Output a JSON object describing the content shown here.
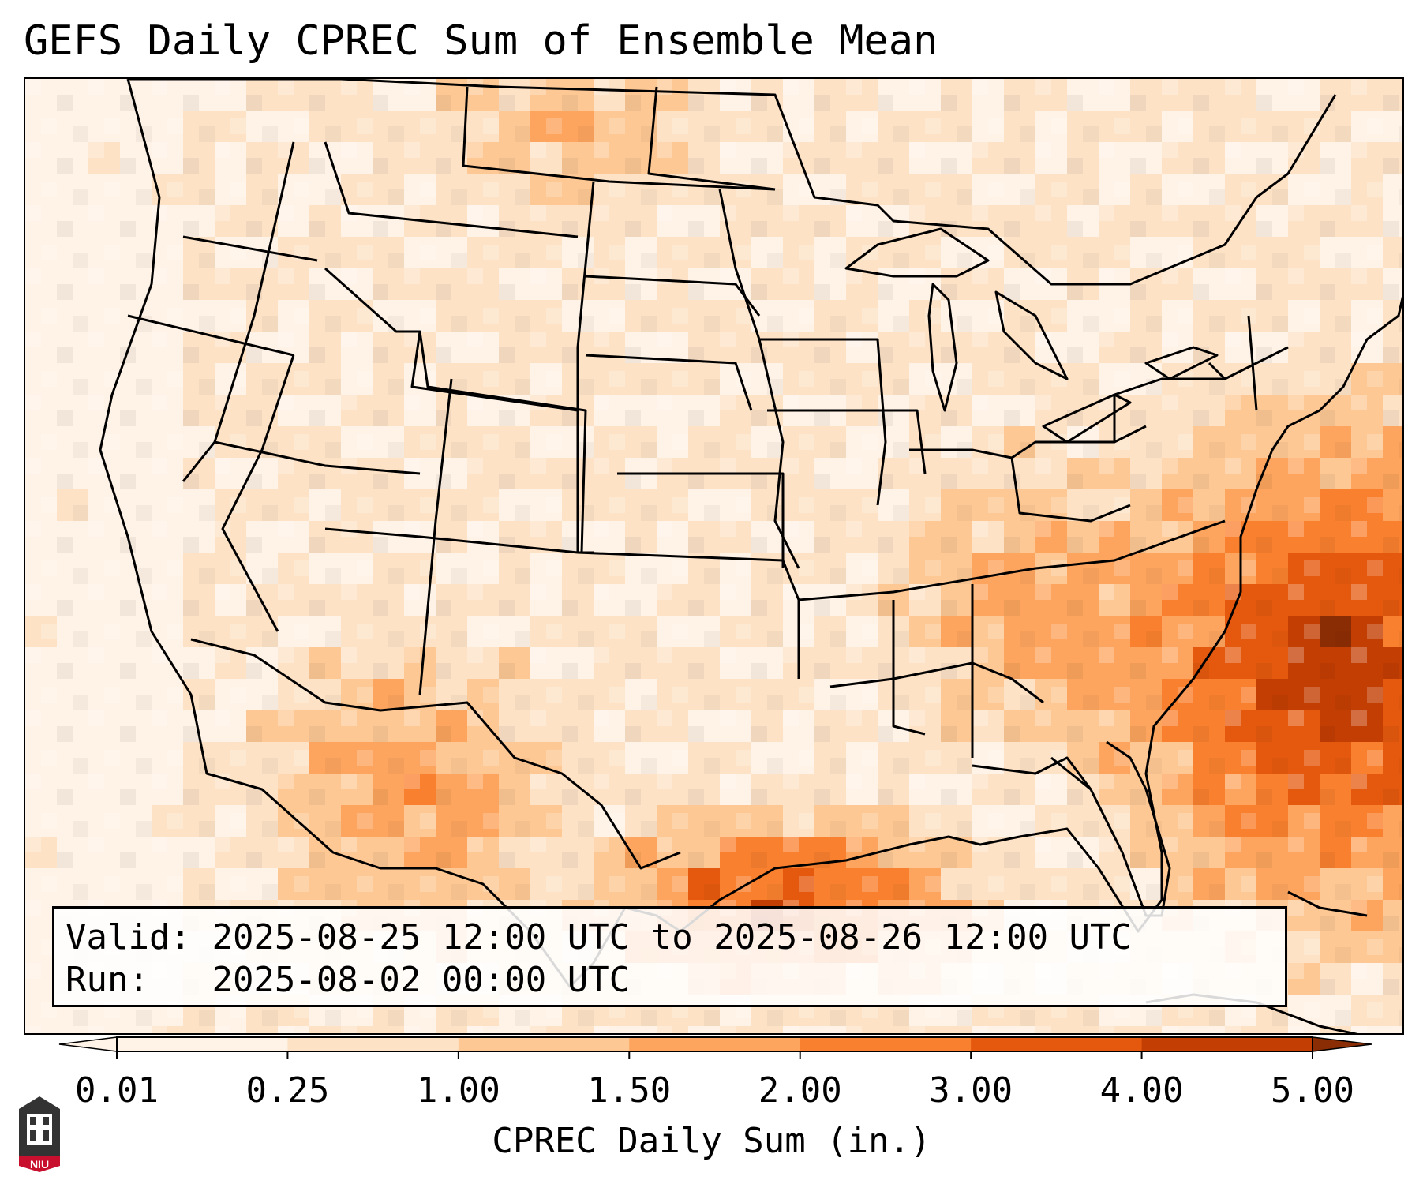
{
  "title": "GEFS Daily CPREC Sum of Ensemble Mean",
  "info": {
    "valid_label": "Valid:",
    "valid_value": "2025-08-25 12:00 UTC to 2025-08-26 12:00 UTC",
    "run_label": "Run:",
    "run_value": "2025-08-02 00:00 UTC"
  },
  "colorbar": {
    "label": "CPREC Daily Sum (in.)",
    "ticks": [
      "0.01",
      "0.25",
      "1.00",
      "1.50",
      "2.00",
      "3.00",
      "4.00",
      "5.00"
    ],
    "colors": [
      "#fff2e6",
      "#fde2c6",
      "#fdc894",
      "#fda45e",
      "#f9802e",
      "#e5590e",
      "#c33e03",
      "#8b2d04"
    ],
    "extend": "both"
  },
  "logo": {
    "text": "NIU",
    "color": "#c8102e"
  }
}
